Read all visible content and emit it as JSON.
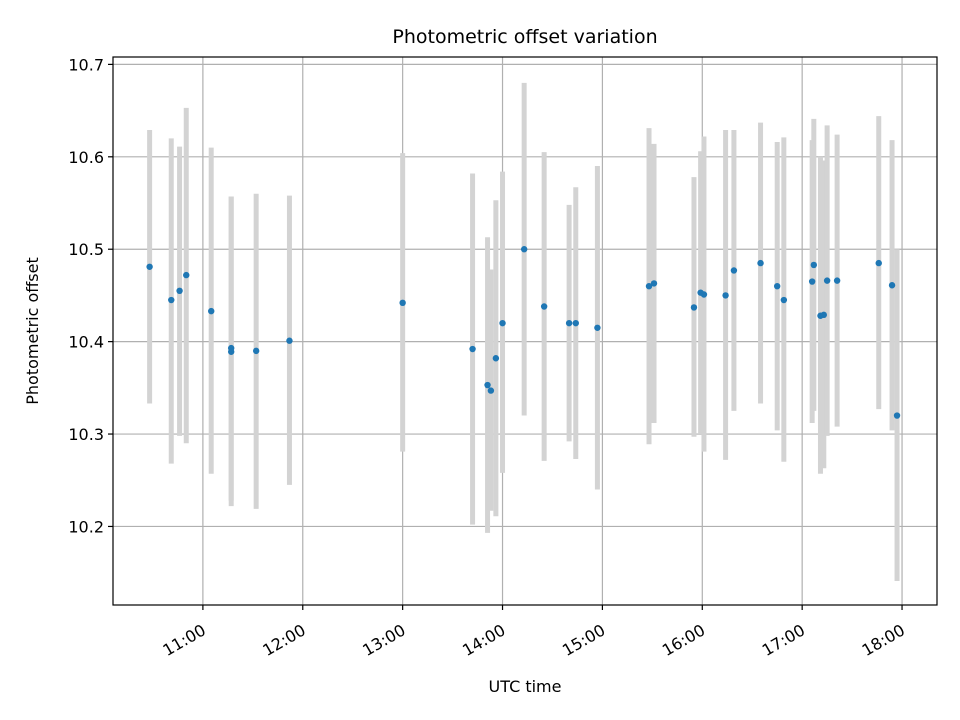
{
  "chart_data": {
    "type": "scatter",
    "title": "Photometric offset variation",
    "xlabel": "UTC time",
    "ylabel": "Photometric offset",
    "grid": true,
    "x_ticks": [
      "11:00",
      "12:00",
      "13:00",
      "14:00",
      "15:00",
      "16:00",
      "17:00",
      "18:00"
    ],
    "y_ticks": [
      "10.2",
      "10.3",
      "10.4",
      "10.5",
      "10.6",
      "10.7"
    ],
    "xlim": [
      "10:06",
      "18:21"
    ],
    "ylim": [
      10.115,
      10.708
    ],
    "colors": {
      "point": "#1f77b4",
      "errorbar": "#d3d3d3",
      "grid": "#b0b0b0"
    },
    "points": [
      {
        "x": "10:28",
        "y": 10.481,
        "ylow": 10.333,
        "yhigh": 10.629
      },
      {
        "x": "10:41",
        "y": 10.445,
        "ylow": 10.268,
        "yhigh": 10.62
      },
      {
        "x": "10:46",
        "y": 10.455,
        "ylow": 10.298,
        "yhigh": 10.611
      },
      {
        "x": "10:50",
        "y": 10.472,
        "ylow": 10.29,
        "yhigh": 10.653
      },
      {
        "x": "11:05",
        "y": 10.433,
        "ylow": 10.257,
        "yhigh": 10.61
      },
      {
        "x": "11:17",
        "y": 10.389,
        "ylow": 10.222,
        "yhigh": 10.557
      },
      {
        "x": "11:17",
        "y": 10.393,
        "ylow": 10.228,
        "yhigh": 10.557
      },
      {
        "x": "11:32",
        "y": 10.39,
        "ylow": 10.219,
        "yhigh": 10.56
      },
      {
        "x": "11:52",
        "y": 10.401,
        "ylow": 10.245,
        "yhigh": 10.558
      },
      {
        "x": "13:00",
        "y": 10.442,
        "ylow": 10.281,
        "yhigh": 10.604
      },
      {
        "x": "13:42",
        "y": 10.392,
        "ylow": 10.202,
        "yhigh": 10.582
      },
      {
        "x": "13:51",
        "y": 10.353,
        "ylow": 10.193,
        "yhigh": 10.513
      },
      {
        "x": "13:53",
        "y": 10.347,
        "ylow": 10.217,
        "yhigh": 10.478
      },
      {
        "x": "13:56",
        "y": 10.382,
        "ylow": 10.211,
        "yhigh": 10.553
      },
      {
        "x": "14:00",
        "y": 10.42,
        "ylow": 10.258,
        "yhigh": 10.584
      },
      {
        "x": "14:13",
        "y": 10.5,
        "ylow": 10.32,
        "yhigh": 10.68
      },
      {
        "x": "14:25",
        "y": 10.438,
        "ylow": 10.271,
        "yhigh": 10.605
      },
      {
        "x": "14:40",
        "y": 10.42,
        "ylow": 10.292,
        "yhigh": 10.548
      },
      {
        "x": "14:44",
        "y": 10.42,
        "ylow": 10.273,
        "yhigh": 10.567
      },
      {
        "x": "14:57",
        "y": 10.415,
        "ylow": 10.24,
        "yhigh": 10.59
      },
      {
        "x": "15:28",
        "y": 10.46,
        "ylow": 10.289,
        "yhigh": 10.631
      },
      {
        "x": "15:31",
        "y": 10.463,
        "ylow": 10.312,
        "yhigh": 10.614
      },
      {
        "x": "15:55",
        "y": 10.437,
        "ylow": 10.297,
        "yhigh": 10.578
      },
      {
        "x": "15:59",
        "y": 10.453,
        "ylow": 10.3,
        "yhigh": 10.606
      },
      {
        "x": "16:01",
        "y": 10.451,
        "ylow": 10.281,
        "yhigh": 10.622
      },
      {
        "x": "16:14",
        "y": 10.45,
        "ylow": 10.272,
        "yhigh": 10.629
      },
      {
        "x": "16:19",
        "y": 10.477,
        "ylow": 10.325,
        "yhigh": 10.629
      },
      {
        "x": "16:35",
        "y": 10.485,
        "ylow": 10.333,
        "yhigh": 10.637
      },
      {
        "x": "16:45",
        "y": 10.46,
        "ylow": 10.304,
        "yhigh": 10.616
      },
      {
        "x": "16:49",
        "y": 10.445,
        "ylow": 10.27,
        "yhigh": 10.621
      },
      {
        "x": "17:06",
        "y": 10.465,
        "ylow": 10.312,
        "yhigh": 10.618
      },
      {
        "x": "17:07",
        "y": 10.483,
        "ylow": 10.325,
        "yhigh": 10.641
      },
      {
        "x": "17:11",
        "y": 10.428,
        "ylow": 10.257,
        "yhigh": 10.6
      },
      {
        "x": "17:13",
        "y": 10.429,
        "ylow": 10.263,
        "yhigh": 10.596
      },
      {
        "x": "17:15",
        "y": 10.466,
        "ylow": 10.298,
        "yhigh": 10.634
      },
      {
        "x": "17:21",
        "y": 10.466,
        "ylow": 10.308,
        "yhigh": 10.624
      },
      {
        "x": "17:46",
        "y": 10.485,
        "ylow": 10.327,
        "yhigh": 10.644
      },
      {
        "x": "17:54",
        "y": 10.461,
        "ylow": 10.304,
        "yhigh": 10.618
      },
      {
        "x": "17:57",
        "y": 10.32,
        "ylow": 10.141,
        "yhigh": 10.5
      }
    ]
  }
}
